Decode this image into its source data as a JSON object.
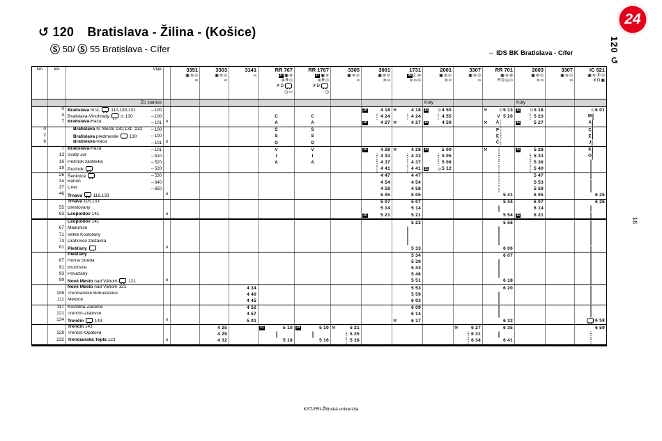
{
  "page": {
    "badge": "24",
    "rotated_route": "120 ↺",
    "rotated_page": "16",
    "footer": "KST-FRI-Žilinská univerzita"
  },
  "header": {
    "route_symbol": "↺",
    "route_number": "120",
    "title": "Bratislava - Žilina - (Košice)",
    "s_symbol": "Ⓢ",
    "s1": "50/",
    "s2": "55",
    "subtitle_rest": "Bratislava - Cífer",
    "ids_symbol": "⇔",
    "ids": "IDS BK Bratislava - Cífer"
  },
  "table": {
    "km_label": "km",
    "vlak_label": "Vlak",
    "from_label": "Zo stanice",
    "trains": [
      {
        "num": "3351",
        "icons": [
          "▣ ⊙ ≋",
          "∞"
        ],
        "origin": ""
      },
      {
        "num": "3303",
        "icons": [
          "▣ ⊙ ≋",
          "∞"
        ],
        "origin": ""
      },
      {
        "num": "3141",
        "icons": [
          "∞"
        ],
        "origin": ""
      },
      {
        "num": "RR 767",
        "icons": [
          "#37 ▣ ≋",
          "⊛ ⊙ R",
          "✗ D ¤",
          "◷ ▭"
        ],
        "origin": ""
      },
      {
        "num": "RR 1767",
        "icons": [
          "#37 ▣ ≋",
          "⊛ ⊙ R",
          "✗ D ¤",
          "◷"
        ],
        "origin": ""
      },
      {
        "num": "3305",
        "icons": [
          "▣ ⊙ ≋",
          "∞"
        ],
        "origin": ""
      },
      {
        "num": "3001",
        "icons": [
          "▣ ⊚ ⊙",
          "≋ ∞"
        ],
        "origin": ""
      },
      {
        "num": "1731",
        "icons": [
          "#96 2. ⊚",
          "⊙ ≋ ∞"
        ],
        "origin": ""
      },
      {
        "num": "2001",
        "icons": [
          "▣ ⊚ ⊙",
          "≋ ∞"
        ],
        "origin": "Kúty"
      },
      {
        "num": "3307",
        "icons": [
          "▣ ⊙ ≋",
          "∞"
        ],
        "origin": ""
      },
      {
        "num": "RR 701",
        "icons": [
          "▣ ≋ ⊛",
          "⊙ R D ◷"
        ],
        "origin": ""
      },
      {
        "num": "2003",
        "icons": [
          "▣ ⊚ ⊙",
          "≋ ∞"
        ],
        "origin": "Kúty"
      },
      {
        "num": "3307",
        "icons": [
          "▣ ⊙ ≋",
          "∞"
        ],
        "origin": ""
      },
      {
        "num": "IC 521",
        "icons": [
          "▣ ≋ ⊙ Ⓡ",
          "✗ D ▣"
        ],
        "origin": ""
      }
    ],
    "rows": [
      [
        "",
        "0",
        0,
        "Bratislava",
        " hl.st. ¤ 110,130,131",
        "⇔100",
        0,
        [
          "",
          "",
          "",
          "",
          "",
          "",
          "#10 4_18",
          "⚒ 4_18",
          "#11 ⊙ 4_50",
          "",
          "⚒ ⊙ 5_13",
          "#11 ⊙ 5_18",
          "",
          "⊙ 6_01"
        ]
      ],
      [
        "",
        "4",
        0,
        "",
        "Bratislava-Vinohrady ¤ ⊙ 130",
        "⇔100",
        0,
        [
          "",
          "",
          "",
          "^C",
          "^C",
          "",
          "~ 4_24",
          "~ 4_24",
          "~ 4_55",
          "",
          "^V 5_20",
          "~ 5_23",
          "",
          "^M |"
        ]
      ],
      [
        "",
        "7",
        0,
        "Bratislava",
        "-Rača",
        "⇔101",
        1,
        [
          "",
          "",
          "",
          "^A",
          "^A",
          "",
          "#10 4_27",
          "⚒ 4_27",
          "#11 4_59",
          "",
          "⚒ ^Á ~",
          "#11 5_27",
          "",
          "^A |"
        ]
      ],
      [
        "0",
        "",
        1,
        "Bratislava",
        "-N. Mesto 130,131 ,132",
        "⇔100",
        0,
        [
          "",
          "",
          "",
          "^S",
          "^S",
          "",
          "",
          "",
          "",
          "",
          "^P ~",
          "",
          "",
          "^C |"
        ]
      ],
      [
        "2",
        "",
        1,
        "Bratislava",
        " predmestie ¤ 130",
        "⇔100",
        0,
        [
          "",
          "",
          "",
          "^S",
          "^S",
          "",
          "",
          "",
          "",
          "",
          "^E ~",
          "",
          "",
          "^E |"
        ]
      ],
      [
        "6",
        "",
        1,
        "Bratislava",
        "-Rača",
        "⇔101",
        1,
        [
          "",
          "",
          "",
          "^O",
          "^O",
          "",
          "",
          "",
          "",
          "",
          "^Č ~",
          "",
          "",
          "^J |"
        ]
      ],
      [
        "",
        "7",
        0,
        "Bratislava",
        "-Rača",
        "⇔101",
        0,
        [
          "",
          "",
          "",
          "^V",
          "^V",
          "",
          "#10 4_28",
          "⚒ 4_28",
          "#11 5_00",
          "",
          "⚒ ~",
          "#11 5_28",
          "",
          "^K |"
        ]
      ],
      [
        "",
        "13",
        0,
        "",
        "Svätý Jur",
        "⇔510",
        0,
        [
          "",
          "",
          "",
          "^I",
          "^I",
          "",
          "~ 4_33",
          "~ 4_33",
          "~ 5_05",
          "",
          "~",
          "~ 5_33",
          "",
          "^O |"
        ]
      ],
      [
        "",
        "16",
        0,
        "",
        "Pezinok zastávka",
        "⇔520",
        0,
        [
          "",
          "",
          "",
          "^A",
          "^A",
          "",
          "~ 4_37",
          "~ 4_37",
          "~ 5_08",
          "",
          "~",
          "~ 5_36",
          "",
          "|"
        ]
      ],
      [
        "",
        "19",
        0,
        "",
        "Pezinok ¤",
        "⇔520",
        0,
        [
          "",
          "",
          "",
          "",
          "",
          "",
          "~ 4_41",
          "~ 4_41",
          "#11 ⊙ 5_12",
          "",
          "~",
          "~ 5_40",
          "",
          "|"
        ]
      ],
      [
        "",
        "26",
        0,
        "",
        "Šenkvice ¤",
        "⇔530",
        0,
        [
          "",
          "",
          "",
          "",
          "",
          "",
          "4_47",
          "4_47",
          "",
          "",
          "~",
          "5_47",
          "",
          "|"
        ]
      ],
      [
        "",
        "34",
        0,
        "",
        "Báhoň",
        "⇔640",
        0,
        [
          "",
          "",
          "",
          "",
          "",
          "",
          "4_54",
          "4_54",
          "",
          "",
          "~",
          "5_53",
          "",
          "|"
        ]
      ],
      [
        "",
        "37",
        0,
        "",
        "Cífer",
        "⇔650",
        0,
        [
          "",
          "",
          "",
          "",
          "",
          "",
          "4_58",
          "4_58",
          "",
          "",
          "~",
          "5_58",
          "",
          "|"
        ]
      ],
      [
        "",
        "46",
        0,
        "Trnava",
        " ¤ 116,133",
        "",
        1,
        [
          "",
          "",
          "",
          "",
          "",
          "",
          "5_05",
          "5_05",
          "",
          "",
          "5_41",
          "6_05",
          "",
          "6_25"
        ]
      ],
      [
        "",
        "",
        0,
        "Trnava",
        " 116,133",
        "",
        0,
        [
          "",
          "",
          "",
          "",
          "",
          "",
          "5_07",
          "5_07",
          "",
          "",
          "5_44",
          "6_07",
          "",
          "6_26"
        ]
      ],
      [
        "",
        "55",
        0,
        "",
        "Brestovany",
        "",
        0,
        [
          "",
          "",
          "",
          "",
          "",
          "",
          "5_14",
          "5_14",
          "",
          "",
          "|",
          "6_14",
          "",
          "|"
        ]
      ],
      [
        "",
        "63",
        0,
        "Leopoldov",
        " 141",
        "",
        1,
        [
          "",
          "",
          "",
          "",
          "",
          "",
          "#10 5_21",
          "5_21",
          "",
          "",
          "5_54",
          "#11 6_21",
          "",
          "|"
        ]
      ],
      [
        "",
        "",
        0,
        "Leopoldov",
        " 141",
        "",
        0,
        [
          "",
          "",
          "",
          "",
          "",
          "",
          "",
          "5_23",
          "",
          "",
          "5_56",
          "",
          "",
          "|"
        ]
      ],
      [
        "",
        "67",
        0,
        "",
        "Madunice",
        "",
        0,
        [
          "",
          "",
          "",
          "",
          "",
          "",
          "",
          "|",
          "",
          "",
          "|",
          "",
          "",
          "|"
        ]
      ],
      [
        "",
        "71",
        0,
        "",
        "Veľké Kostoľany",
        "",
        0,
        [
          "",
          "",
          "",
          "",
          "",
          "",
          "",
          "|",
          "",
          "",
          "|",
          "",
          "",
          "|"
        ]
      ],
      [
        "",
        "73",
        0,
        "",
        "Drahovce zastávka",
        "",
        0,
        [
          "",
          "",
          "",
          "",
          "",
          "",
          "",
          "|",
          "",
          "",
          "|",
          "",
          "",
          "|"
        ]
      ],
      [
        "",
        "81",
        0,
        "Piešťany",
        " ¤",
        "",
        1,
        [
          "",
          "",
          "",
          "",
          "",
          "",
          "",
          "5_33",
          "",
          "",
          "6_06",
          "",
          "",
          "|"
        ]
      ],
      [
        "",
        "",
        0,
        "Piešťany",
        "",
        "",
        0,
        [
          "",
          "",
          "",
          "",
          "",
          "",
          "",
          "5_34",
          "",
          "",
          "6_07",
          "",
          "",
          "|"
        ]
      ],
      [
        "",
        "87",
        0,
        "",
        "Horná Streda",
        "",
        0,
        [
          "",
          "",
          "",
          "",
          "",
          "",
          "",
          "5_39",
          "",
          "",
          "|",
          "",
          "",
          "|"
        ]
      ],
      [
        "",
        "91",
        0,
        "",
        "Brunovce",
        "",
        0,
        [
          "",
          "",
          "",
          "",
          "",
          "",
          "",
          "5_43",
          "",
          "",
          "|",
          "",
          "",
          "|"
        ]
      ],
      [
        "",
        "93",
        0,
        "",
        "Považany",
        "",
        0,
        [
          "",
          "",
          "",
          "",
          "",
          "",
          "",
          "5_46",
          "",
          "",
          "|",
          "",
          "",
          "|"
        ]
      ],
      [
        "",
        "99",
        0,
        "Nové Mesto",
        " nad Váhom ¤ 121",
        "",
        1,
        [
          "",
          "",
          "",
          "",
          "",
          "",
          "",
          "5_51",
          "",
          "",
          "6_18",
          "",
          "",
          "|"
        ]
      ],
      [
        "",
        "",
        0,
        "Nové Mesto",
        " nad Váhom 121",
        "",
        0,
        [
          "",
          "",
          "4_34",
          "",
          "",
          "",
          "",
          "5_53",
          "",
          "",
          "6_20",
          "",
          "",
          "|"
        ]
      ],
      [
        "",
        "106",
        0,
        "",
        "Trenčianske Bohuslavice",
        "",
        0,
        [
          "",
          "",
          "4_40",
          "",
          "",
          "",
          "",
          "5_59",
          "",
          "",
          "|",
          "",
          "",
          "|"
        ]
      ],
      [
        "",
        "111",
        0,
        "",
        "Melčice",
        "",
        0,
        [
          "",
          "",
          "4_45",
          "",
          "",
          "",
          "",
          "6_03",
          "",
          "",
          "|",
          "",
          "",
          "|"
        ]
      ],
      [
        "",
        "117",
        0,
        "",
        "Kostolná-Zariečie",
        "",
        0,
        [
          "",
          "",
          "4_52",
          "",
          "",
          "",
          "",
          "6_09",
          "",
          "",
          "|",
          "",
          "",
          "|"
        ]
      ],
      [
        "",
        "121",
        0,
        "",
        "Trenčín-Zlatovce",
        "",
        0,
        [
          "",
          "",
          "4_57",
          "",
          "",
          "",
          "",
          "6_14",
          "",
          "",
          "|",
          "",
          "",
          "|"
        ]
      ],
      [
        "",
        "124",
        0,
        "Trenčín",
        " ¤ 143",
        "",
        1,
        [
          "",
          "",
          "5_01",
          "",
          "",
          "",
          "",
          "⚒ 6_17",
          "",
          "",
          "6_33",
          "",
          "",
          "¤ 6_58"
        ]
      ],
      [
        "",
        "",
        0,
        "Trenčín",
        " 143",
        "",
        0,
        [
          "",
          "4_25",
          "",
          "#31 5_10",
          "#34 5_10",
          "⚒ 5_21",
          "",
          "",
          "",
          "⚒ 6_27",
          "6_35",
          "",
          "",
          "6_59"
        ]
      ],
      [
        "",
        "128",
        0,
        "",
        "Trenčín-Opatová",
        "",
        0,
        [
          "",
          "4_29",
          "",
          "|",
          "|",
          "~ 5_25",
          "",
          "",
          "",
          "~ 6_31",
          "|",
          "",
          "",
          "~"
        ]
      ],
      [
        "",
        "132",
        0,
        "Trenčianska Teplá",
        " 123",
        "",
        1,
        [
          "",
          "4_32",
          "",
          "5_16",
          "5_16",
          "~ 5_28",
          "",
          "",
          "",
          "~ 6_34",
          "6_41",
          "",
          "",
          "~"
        ]
      ]
    ],
    "group_line_after": [
      2,
      5,
      9,
      13,
      21,
      26,
      29,
      32
    ],
    "thick_line_after": [
      16,
      35
    ]
  }
}
